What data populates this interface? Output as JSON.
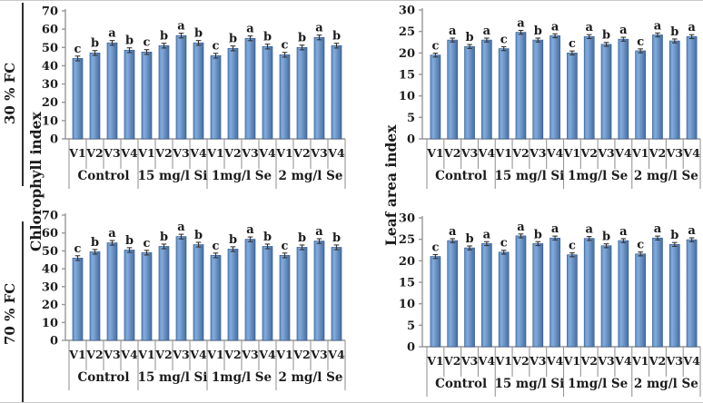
{
  "figure": {
    "row_labels": [
      "30 % FC",
      "70 % FC"
    ],
    "left_axis_label": "Chlorophyll index",
    "right_axis_label": "Leaf area index"
  },
  "colors": {
    "bar_light": "#83abdb",
    "bar_mid": "#5d8ec8",
    "bar_dark": "#456da1",
    "bar_stroke": "#3a6095",
    "axis_line": "#969696",
    "error_bar": "#333333",
    "text": "#1b1b1b",
    "row_divider": "#2d2d2d"
  },
  "chart_data": [
    {
      "id": "chlorophyll-index-30-fc",
      "type": "bar",
      "row_label": "30 % FC",
      "ylabel": "Chlorophyll index",
      "ylim": [
        0,
        70
      ],
      "ytick_step": 10,
      "categories": [
        "V1",
        "V2",
        "V3",
        "V4"
      ],
      "error_bar": 1.3,
      "series": [
        {
          "name": "Control",
          "values": [
            44,
            47,
            52.5,
            48.5
          ],
          "letters": [
            "c",
            "b",
            "a",
            "b"
          ]
        },
        {
          "name": "15 mg/l Si",
          "values": [
            47.5,
            51,
            56.5,
            52.5
          ],
          "letters": [
            "c",
            "b",
            "a",
            "b"
          ]
        },
        {
          "name": "1mg/l Se",
          "values": [
            45.5,
            49.5,
            55,
            50.5
          ],
          "letters": [
            "c",
            "b",
            "a",
            "b"
          ]
        },
        {
          "name": "2 mg/l Se",
          "values": [
            46,
            50,
            55.5,
            51
          ],
          "letters": [
            "c",
            "b",
            "a",
            "b"
          ]
        }
      ]
    },
    {
      "id": "leaf-area-index-30-fc",
      "type": "bar",
      "row_label": "30 % FC",
      "ylabel": "Leaf area index",
      "ylim": [
        0,
        30
      ],
      "ytick_step": 5,
      "categories": [
        "V1",
        "V2",
        "V3",
        "V4"
      ],
      "error_bar": 0.45,
      "series": [
        {
          "name": "Control",
          "values": [
            19.5,
            23,
            21.5,
            23
          ],
          "letters": [
            "c",
            "a",
            "b",
            "a"
          ]
        },
        {
          "name": "15 mg/l Si",
          "values": [
            21,
            24.8,
            23,
            24
          ],
          "letters": [
            "c",
            "a",
            "b",
            "a"
          ]
        },
        {
          "name": "1mg/l Se",
          "values": [
            20,
            23.8,
            22,
            23.2
          ],
          "letters": [
            "c",
            "a",
            "b",
            "a"
          ]
        },
        {
          "name": "2 mg/l Se",
          "values": [
            20.5,
            24.2,
            22.8,
            23.8
          ],
          "letters": [
            "c",
            "a",
            "b",
            "a"
          ]
        }
      ]
    },
    {
      "id": "chlorophyll-index-70-fc",
      "type": "bar",
      "row_label": "70 % FC",
      "ylabel": "Chlorophyll index",
      "ylim": [
        0,
        70
      ],
      "ytick_step": 10,
      "categories": [
        "V1",
        "V2",
        "V3",
        "V4"
      ],
      "error_bar": 1.3,
      "series": [
        {
          "name": "Control",
          "values": [
            46,
            49.5,
            54.5,
            50.5
          ],
          "letters": [
            "c",
            "b",
            "a",
            "b"
          ]
        },
        {
          "name": "15 mg/l Si",
          "values": [
            49,
            52.5,
            58,
            53.5
          ],
          "letters": [
            "c",
            "b",
            "a",
            "b"
          ]
        },
        {
          "name": "1mg/l Se",
          "values": [
            47.5,
            51,
            56.5,
            52.5
          ],
          "letters": [
            "c",
            "b",
            "a",
            "b"
          ]
        },
        {
          "name": "2 mg/l Se",
          "values": [
            47.5,
            52,
            55.5,
            52
          ],
          "letters": [
            "c",
            "b",
            "a",
            "b"
          ]
        }
      ]
    },
    {
      "id": "leaf-area-index-70-fc",
      "type": "bar",
      "row_label": "70 % FC",
      "ylabel": "Leaf area index",
      "ylim": [
        0,
        30
      ],
      "ytick_step": 5,
      "categories": [
        "V1",
        "V2",
        "V3",
        "V4"
      ],
      "error_bar": 0.45,
      "series": [
        {
          "name": "Control",
          "values": [
            21,
            24.7,
            23,
            24
          ],
          "letters": [
            "c",
            "a",
            "b",
            "a"
          ]
        },
        {
          "name": "15 mg/l Si",
          "values": [
            22,
            25.8,
            24,
            25.3
          ],
          "letters": [
            "c",
            "a",
            "b",
            "a"
          ]
        },
        {
          "name": "1mg/l Se",
          "values": [
            21.4,
            25.2,
            23.5,
            24.7
          ],
          "letters": [
            "c",
            "a",
            "b",
            "a"
          ]
        },
        {
          "name": "2 mg/l Se",
          "values": [
            21.6,
            25.3,
            23.8,
            24.9
          ],
          "letters": [
            "c",
            "a",
            "b",
            "a"
          ]
        }
      ]
    }
  ]
}
